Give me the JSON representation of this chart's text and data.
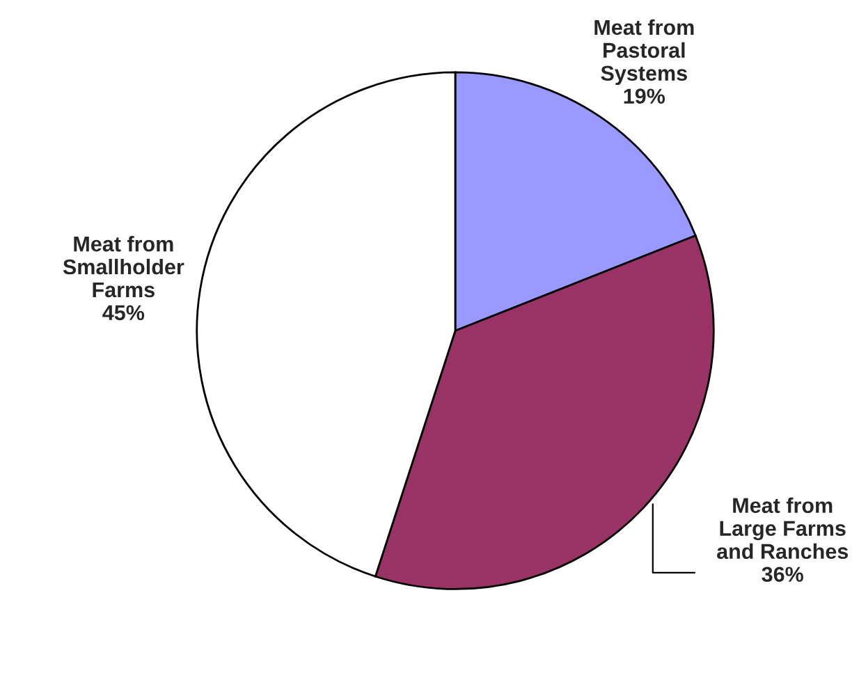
{
  "chart_data": {
    "type": "pie",
    "categories": [
      "Meat from\nPastoral\nSystems",
      "Meat from\nLarge Farms\nand Ranches",
      "Meat from\nSmallholder\nFarms"
    ],
    "values": [
      19,
      36,
      45
    ],
    "value_labels": [
      "19%",
      "36%",
      "45%"
    ],
    "colors": [
      "#9999ff",
      "#993366",
      "#ffffff"
    ]
  }
}
